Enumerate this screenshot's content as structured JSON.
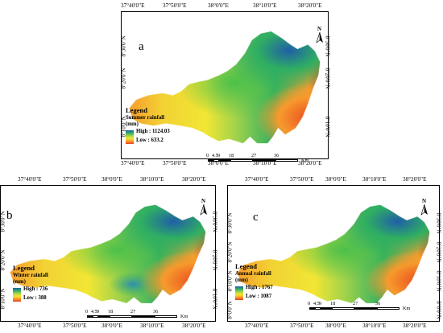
{
  "colors": {
    "high": "#1f5fa8",
    "mid_high": "#2fae62",
    "mid": "#a3d34a",
    "mid_low": "#f2e634",
    "low_mid": "#f79a2c",
    "low": "#e8421f",
    "frame": "#000000"
  },
  "panels": [
    {
      "label": "a",
      "top_ticks": [
        "37°40'0\"E",
        "37°50'0\"E",
        "38°0'0\"E",
        "38°10'0\"E",
        "38°20'0\"E"
      ],
      "bottom_ticks": [
        "37°40'0\"E",
        "37°50'0\"E",
        "38°0'0\"E",
        "38°10'0\"E",
        "38°20'0\"E"
      ],
      "left_ticks": [
        "8°30'0\"N",
        "8°20'0\"N",
        "8°10'0\"N"
      ],
      "right_ticks": [
        "8°30'0\"N",
        "8°20'0\"N",
        "8°10'0\"N"
      ],
      "legend_title": "Legend",
      "legend_subtitle": "Summer rainfall",
      "legend_unit": "(mm)",
      "high_label": "High : 1124.03",
      "low_label": "Low : 633.2",
      "scale_labels": [
        "0",
        "4.5",
        "9",
        "18",
        "27",
        "36"
      ],
      "scale_unit": "Km",
      "north_label": "N"
    },
    {
      "label": "b",
      "top_ticks": [
        "37°40'0\"E",
        "37°50'0\"E",
        "38°0'0\"E",
        "38°10'0\"E",
        "38°20'0\"E"
      ],
      "bottom_ticks": [
        "37°40'0\"E",
        "37°50'0\"E",
        "38°0'0\"E",
        "38°10'0\"E",
        "38°20'0\"E"
      ],
      "left_ticks": [
        "8°30'0\"N",
        "8°20'0\"N",
        "8°10'0\"N"
      ],
      "right_ticks": [
        "8°30'0\"N",
        "8°20'0\"N",
        "8°10'0\"N"
      ],
      "legend_title": "Legend",
      "legend_subtitle": "Winter rainfall",
      "legend_unit": "(mm)",
      "high_label": "High : 736",
      "low_label": "Low : 388",
      "scale_labels": [
        "0",
        "4.5",
        "9",
        "18",
        "27",
        "36"
      ],
      "scale_unit": "Km",
      "north_label": "N"
    },
    {
      "label": "c",
      "top_ticks": [
        "37°40'0\"E",
        "37°50'0\"E",
        "38°0'0\"E",
        "38°10'0\"E",
        "38°20'0\"E"
      ],
      "bottom_ticks": [
        "37°40'0\"E",
        "37°50'0\"E",
        "38°0'0\"E",
        "38°10'0\"E",
        "38°20'0\"E"
      ],
      "left_ticks": [
        "8°30'0\"N",
        "8°20'0\"N",
        "8°10'0\"N",
        "8°0'0\"N"
      ],
      "right_ticks": [
        "8°30'0\"N",
        "8°20'0\"N",
        "8°10'0\"N",
        "8°0'0\"N"
      ],
      "legend_title": "Legend",
      "legend_subtitle": "Annual rainfall",
      "legend_unit": "(mm)",
      "high_label": "High : 1767",
      "low_label": "Low : 1087",
      "scale_labels": [
        "0",
        "4.5",
        "9",
        "18",
        "27",
        "36"
      ],
      "scale_unit": "Km",
      "north_label": "N"
    }
  ]
}
